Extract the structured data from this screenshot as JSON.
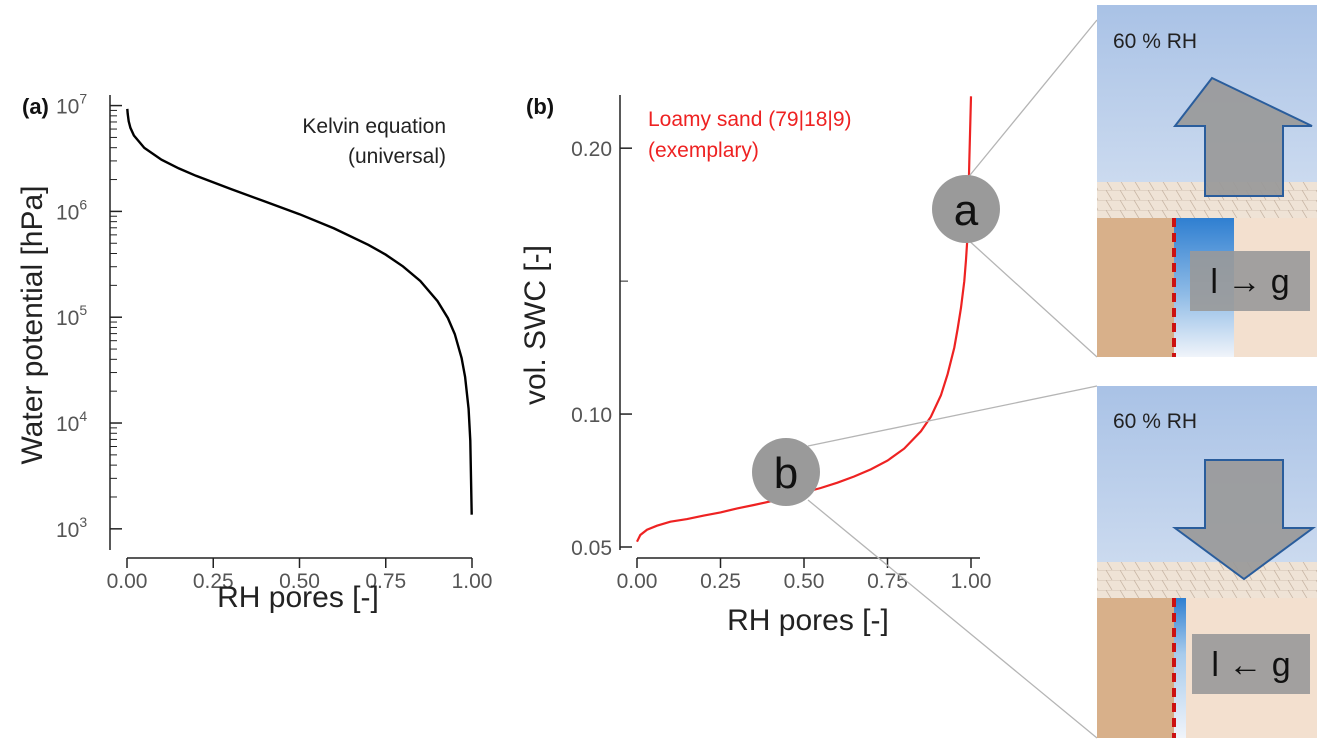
{
  "colors": {
    "curve_a": "#000000",
    "curve_b": "#ee2222",
    "marker": "#9a9a9a",
    "sky_top": "#a9c2e6",
    "sky_bottom": "#e8eef7",
    "soil_dark": "#d8b08a",
    "soil_light": "#f3e0cf",
    "water": "#2f7fd1",
    "interface": "#cc1111",
    "arrow_fill": "#999999",
    "arrow_stroke": "#2a5d9c"
  },
  "chart_data": [
    {
      "panel": "(a)",
      "type": "line",
      "annotation": [
        "Kelvin equation",
        "(universal)"
      ],
      "xlabel": "RH pores [-]",
      "ylabel": "Water potential [hPa]",
      "xlim": [
        0,
        1
      ],
      "ylim_log10": [
        2.8,
        7.1
      ],
      "y_scale": "log",
      "x_ticks": [
        "0.00",
        "0.25",
        "0.50",
        "0.75",
        "1.00"
      ],
      "y_ticks": [
        {
          "base": "10",
          "exp": "3"
        },
        {
          "base": "10",
          "exp": "4"
        },
        {
          "base": "10",
          "exp": "5"
        },
        {
          "base": "10",
          "exp": "6"
        },
        {
          "base": "10",
          "exp": "7"
        }
      ],
      "series": [
        {
          "x": [
            0.001,
            0.002,
            0.005,
            0.01,
            0.02,
            0.05,
            0.1,
            0.15,
            0.2,
            0.3,
            0.4,
            0.5,
            0.6,
            0.7,
            0.75,
            0.8,
            0.85,
            0.9,
            0.93,
            0.95,
            0.97,
            0.98,
            0.99,
            0.995,
            0.999
          ],
          "y": [
            9300000,
            8360000,
            7100000,
            6160000,
            5220000,
            3980000,
            3080000,
            2550000,
            2170000,
            1630000,
            1240000,
            940000,
            690000,
            482000,
            390000,
            302000,
            220000,
            142000,
            98000,
            69300,
            41200,
            27300,
            13600,
            6790,
            1360
          ]
        }
      ]
    },
    {
      "panel": "(b)",
      "type": "line",
      "annotation": [
        "Loamy sand (79|18|9)",
        "(exemplary)"
      ],
      "xlabel": "RH pores [-]",
      "ylabel": "vol. SWC [-]",
      "xlim": [
        0,
        1
      ],
      "ylim": [
        0.05,
        0.22
      ],
      "x_ticks": [
        "0.00",
        "0.25",
        "0.50",
        "0.75",
        "1.00"
      ],
      "y_ticks": [
        "0.05",
        "0.10",
        "0.20"
      ],
      "series": [
        {
          "x": [
            0.0,
            0.01,
            0.03,
            0.06,
            0.1,
            0.15,
            0.2,
            0.25,
            0.3,
            0.35,
            0.4,
            0.45,
            0.5,
            0.55,
            0.6,
            0.65,
            0.7,
            0.75,
            0.8,
            0.85,
            0.88,
            0.91,
            0.93,
            0.95,
            0.96,
            0.97,
            0.98,
            0.985,
            0.99,
            0.995,
            1.0
          ],
          "y": [
            0.052,
            0.0545,
            0.0565,
            0.058,
            0.0595,
            0.0605,
            0.0618,
            0.063,
            0.0645,
            0.0658,
            0.0672,
            0.0688,
            0.0705,
            0.0722,
            0.0742,
            0.0765,
            0.0792,
            0.0825,
            0.087,
            0.0935,
            0.099,
            0.107,
            0.115,
            0.125,
            0.132,
            0.14,
            0.15,
            0.158,
            0.168,
            0.195,
            0.2195
          ]
        }
      ],
      "markers": [
        {
          "label": "a",
          "x": 0.99,
          "y": 0.1905
        },
        {
          "label": "b",
          "x": 0.44,
          "y": 0.0695
        }
      ]
    }
  ],
  "insets": [
    {
      "id": "a",
      "rh_label": "60 % RH",
      "direction": "up",
      "process_label": "l → g"
    },
    {
      "id": "b",
      "rh_label": "60 % RH",
      "direction": "down",
      "process_label": "l ← g"
    }
  ]
}
